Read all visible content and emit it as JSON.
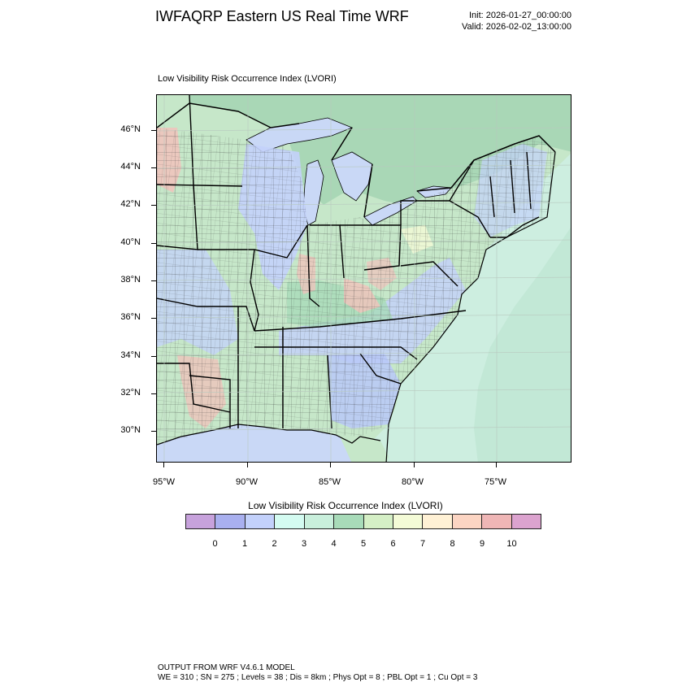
{
  "header": {
    "title": "IWFAQRP Eastern US Real Time WRF",
    "init": "Init: 2026-01-27_00:00:00",
    "valid": "Valid: 2026-02-02_13:00:00"
  },
  "map": {
    "field_title": "Low Visibility Risk Occurrence Index   (LVORI)",
    "lat_labels": [
      "46°N",
      "44°N",
      "42°N",
      "40°N",
      "38°N",
      "36°N",
      "34°N",
      "32°N",
      "30°N"
    ],
    "lon_labels": [
      "95°W",
      "90°W",
      "85°W",
      "80°W",
      "75°W"
    ],
    "colors": {
      "land_base": "#c6e7c9",
      "lake_water": "#c9d8f6",
      "ocean": "#d8f1e6",
      "high_risk": "#eec4bc",
      "county_lines": "#333333",
      "state_lines": "#000000"
    }
  },
  "colorbar": {
    "title": "Low Visibility Risk Occurrence Index  (LVORI)",
    "colors": [
      "#c7a2dc",
      "#a9b0ef",
      "#c3d1fb",
      "#d4fbf1",
      "#c9efdc",
      "#a8dbb9",
      "#d5efc6",
      "#f4fbd7",
      "#fff1d5",
      "#fcd5c3",
      "#efb6b6",
      "#dca3cf"
    ],
    "labels": [
      "0",
      "1",
      "2",
      "3",
      "4",
      "5",
      "6",
      "7",
      "8",
      "9",
      "10"
    ]
  },
  "footer": {
    "line1": "OUTPUT FROM WRF V4.6.1 MODEL",
    "line2": "WE = 310 ; SN = 275 ; Levels = 38 ; Dis = 8km ; Phys Opt = 8 ; PBL Opt = 1 ; Cu Opt = 3"
  }
}
